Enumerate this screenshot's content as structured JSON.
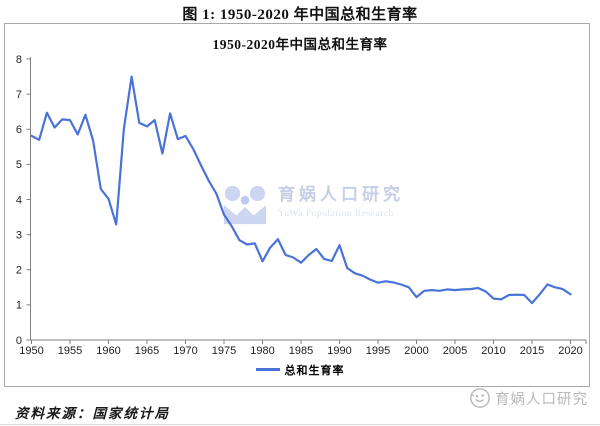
{
  "page": {
    "figure_title": "图 1: 1950-2020 年中国总和生育率",
    "source_note": "资料来源：国家统计局"
  },
  "watermark": {
    "name_cn": "育娲人口研究",
    "name_en": "YuWa Population Research",
    "footer_cn": "育娲人口研究"
  },
  "legend": {
    "series_label": "总和生育率"
  },
  "colors": {
    "line": "#4a73d9",
    "axis": "#808080",
    "tick_text": "#1f1f1f",
    "frame": "#a9a9a9",
    "watermark_logo": "#cdd6f1",
    "watermark_text": "#c7cfe7",
    "footer_watermark": "#b9b9b9"
  },
  "chart_data": {
    "type": "line",
    "title": "1950-2020年中国总和生育率",
    "xlabel": "",
    "ylabel": "",
    "xlim": [
      1950,
      2020
    ],
    "ylim": [
      0,
      8
    ],
    "grid": false,
    "legend_position": "bottom",
    "legend": [
      "总和生育率"
    ],
    "x_tick_labels": [
      "1950",
      "1955",
      "1960",
      "1965",
      "1970",
      "1975",
      "1980",
      "1985",
      "1990",
      "1995",
      "2000",
      "2005",
      "2010",
      "2015",
      "2020"
    ],
    "y_tick_labels": [
      "0",
      "1",
      "2",
      "3",
      "4",
      "5",
      "6",
      "7",
      "8"
    ],
    "x": [
      1950,
      1951,
      1952,
      1953,
      1954,
      1955,
      1956,
      1957,
      1958,
      1959,
      1960,
      1961,
      1962,
      1963,
      1964,
      1965,
      1966,
      1967,
      1968,
      1969,
      1970,
      1971,
      1972,
      1973,
      1974,
      1975,
      1976,
      1977,
      1978,
      1979,
      1980,
      1981,
      1982,
      1983,
      1984,
      1985,
      1986,
      1987,
      1988,
      1989,
      1990,
      1991,
      1992,
      1993,
      1994,
      1995,
      1996,
      1997,
      1998,
      1999,
      2000,
      2001,
      2002,
      2003,
      2004,
      2005,
      2006,
      2007,
      2008,
      2009,
      2010,
      2011,
      2012,
      2013,
      2014,
      2015,
      2016,
      2017,
      2018,
      2019,
      2020
    ],
    "series": [
      {
        "name": "总和生育率",
        "values": [
          5.81,
          5.7,
          6.47,
          6.05,
          6.28,
          6.26,
          5.85,
          6.41,
          5.68,
          4.3,
          4.02,
          3.29,
          6.02,
          7.5,
          6.18,
          6.08,
          6.26,
          5.31,
          6.45,
          5.72,
          5.81,
          5.44,
          4.98,
          4.54,
          4.17,
          3.57,
          3.24,
          2.84,
          2.72,
          2.75,
          2.24,
          2.63,
          2.87,
          2.42,
          2.35,
          2.2,
          2.42,
          2.59,
          2.31,
          2.25,
          2.7,
          2.05,
          1.9,
          1.83,
          1.72,
          1.63,
          1.67,
          1.64,
          1.58,
          1.5,
          1.22,
          1.4,
          1.42,
          1.4,
          1.44,
          1.42,
          1.44,
          1.45,
          1.48,
          1.38,
          1.18,
          1.16,
          1.28,
          1.29,
          1.28,
          1.05,
          1.3,
          1.58,
          1.5,
          1.45,
          1.3
        ]
      }
    ]
  }
}
